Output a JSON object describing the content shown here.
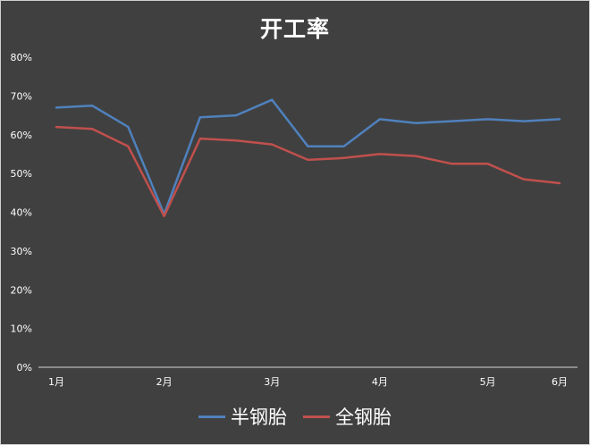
{
  "chart_data": {
    "type": "line",
    "title": "开工率",
    "xlabel": "",
    "ylabel": "",
    "ylim": [
      0,
      80
    ],
    "y_ticks": [
      "0%",
      "10%",
      "20%",
      "30%",
      "40%",
      "50%",
      "60%",
      "70%",
      "80%"
    ],
    "x_ticks": [
      {
        "label": "1月",
        "x": 0
      },
      {
        "label": "2月",
        "x": 3
      },
      {
        "label": "3月",
        "x": 6
      },
      {
        "label": "4月",
        "x": 9
      },
      {
        "label": "5月",
        "x": 12
      },
      {
        "label": "6月",
        "x": 14
      }
    ],
    "x": [
      0,
      1,
      2,
      3,
      4,
      5,
      6,
      7,
      8,
      9,
      10,
      11,
      12,
      13,
      14
    ],
    "series": [
      {
        "name": "半钢胎",
        "color": "#4f81bd",
        "values": [
          67,
          67.5,
          62,
          39.5,
          64.5,
          65,
          69,
          57,
          57,
          64,
          63,
          63.5,
          64,
          63.5,
          64
        ]
      },
      {
        "name": "全钢胎",
        "color": "#c0504d",
        "values": [
          62,
          61.5,
          57,
          39,
          59,
          58.5,
          57.5,
          53.5,
          54,
          55,
          54.5,
          52.5,
          52.5,
          48.5,
          47.5
        ]
      }
    ],
    "grid": false,
    "legend_position": "bottom"
  }
}
